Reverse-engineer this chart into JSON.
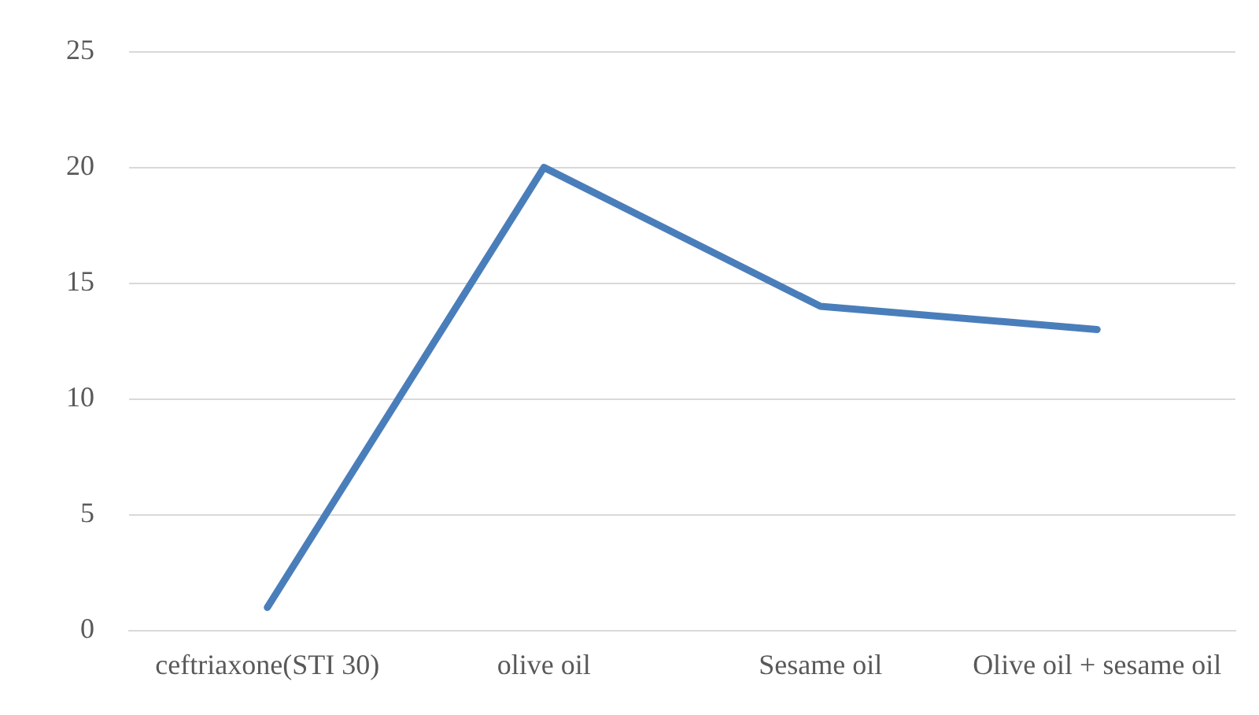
{
  "chart_data": {
    "type": "line",
    "categories": [
      "ceftriaxone(STI 30)",
      "olive oil",
      "Sesame oil",
      "Olive oil + sesame oil"
    ],
    "series": [
      {
        "color": "#4a7ebb",
        "values": [
          1,
          20,
          14,
          13
        ]
      }
    ],
    "ylim": [
      0,
      25
    ],
    "yticks": [
      0,
      5,
      10,
      15,
      20,
      25
    ],
    "grid": "y",
    "legend": false,
    "marker": "none",
    "line_style": "solid"
  }
}
